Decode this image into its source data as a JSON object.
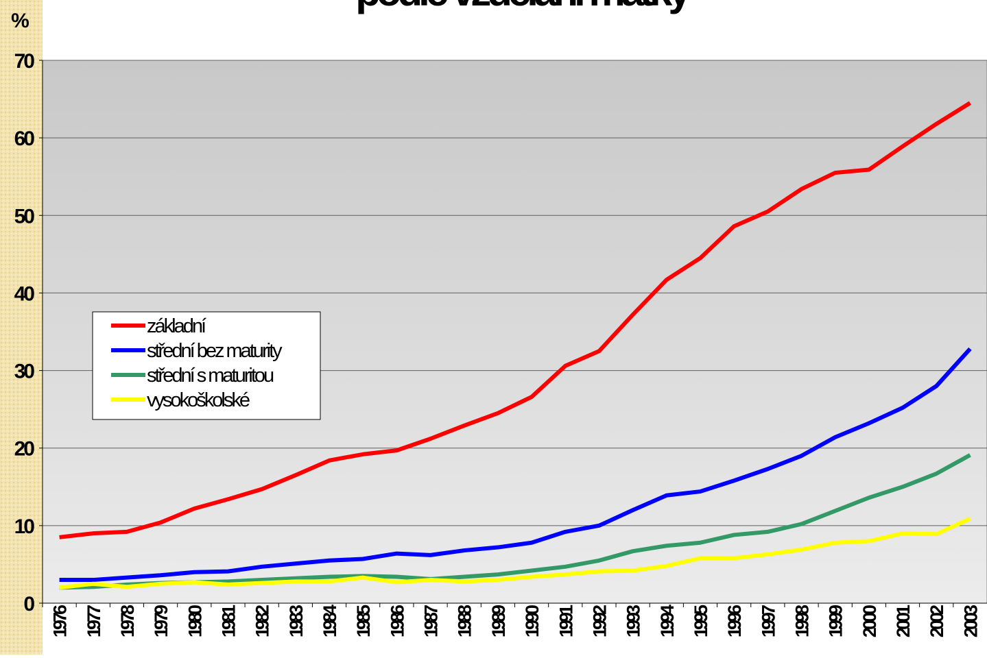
{
  "chart_data": {
    "type": "line",
    "title": "podle vzdělání matky",
    "y_label": "%",
    "categories": [
      "1976",
      "1977",
      "1978",
      "1979",
      "1980",
      "1981",
      "1982",
      "1983",
      "1984",
      "1985",
      "1986",
      "1987",
      "1988",
      "1989",
      "1990",
      "1991",
      "1992",
      "1993",
      "1994",
      "1995",
      "1996",
      "1997",
      "1998",
      "1999",
      "2000",
      "2001",
      "2002",
      "2003"
    ],
    "series": [
      {
        "name": "základní",
        "color": "#ff0000",
        "values": [
          8.5,
          9.0,
          9.2,
          10.4,
          12.2,
          13.4,
          14.7,
          16.5,
          18.4,
          19.2,
          19.7,
          21.2,
          22.9,
          24.5,
          26.6,
          30.6,
          32.5,
          37.2,
          41.7,
          44.5,
          48.6,
          50.5,
          53.4,
          55.5,
          55.9,
          58.9,
          61.8,
          64.5
        ]
      },
      {
        "name": "střední bez maturity",
        "color": "#0000ff",
        "values": [
          3.0,
          3.0,
          3.3,
          3.6,
          4.0,
          4.1,
          4.7,
          5.1,
          5.5,
          5.7,
          6.4,
          6.2,
          6.8,
          7.2,
          7.8,
          9.2,
          10.0,
          12.0,
          13.9,
          14.4,
          15.8,
          17.3,
          19.0,
          21.4,
          23.2,
          25.2,
          28.0,
          32.8
        ]
      },
      {
        "name": "střední s maturitou",
        "color": "#339966",
        "values": [
          2.0,
          2.1,
          2.4,
          2.6,
          2.7,
          2.8,
          3.0,
          3.2,
          3.4,
          3.5,
          3.4,
          3.1,
          3.4,
          3.7,
          4.2,
          4.7,
          5.5,
          6.7,
          7.4,
          7.8,
          8.8,
          9.2,
          10.2,
          11.9,
          13.6,
          15.0,
          16.7,
          19.1
        ]
      },
      {
        "name": "vysokoškolské",
        "color": "#ffff00",
        "values": [
          2.0,
          2.5,
          2.1,
          2.5,
          2.7,
          2.4,
          2.6,
          2.8,
          2.8,
          3.3,
          2.7,
          3.0,
          2.8,
          3.0,
          3.4,
          3.7,
          4.1,
          4.2,
          4.8,
          5.8,
          5.8,
          6.3,
          6.9,
          7.8,
          8.0,
          9.0,
          8.9,
          10.9
        ]
      }
    ],
    "ylim": [
      0,
      70
    ],
    "yticks": [
      0,
      10,
      20,
      30,
      40,
      50,
      60,
      70
    ],
    "grid": true
  }
}
